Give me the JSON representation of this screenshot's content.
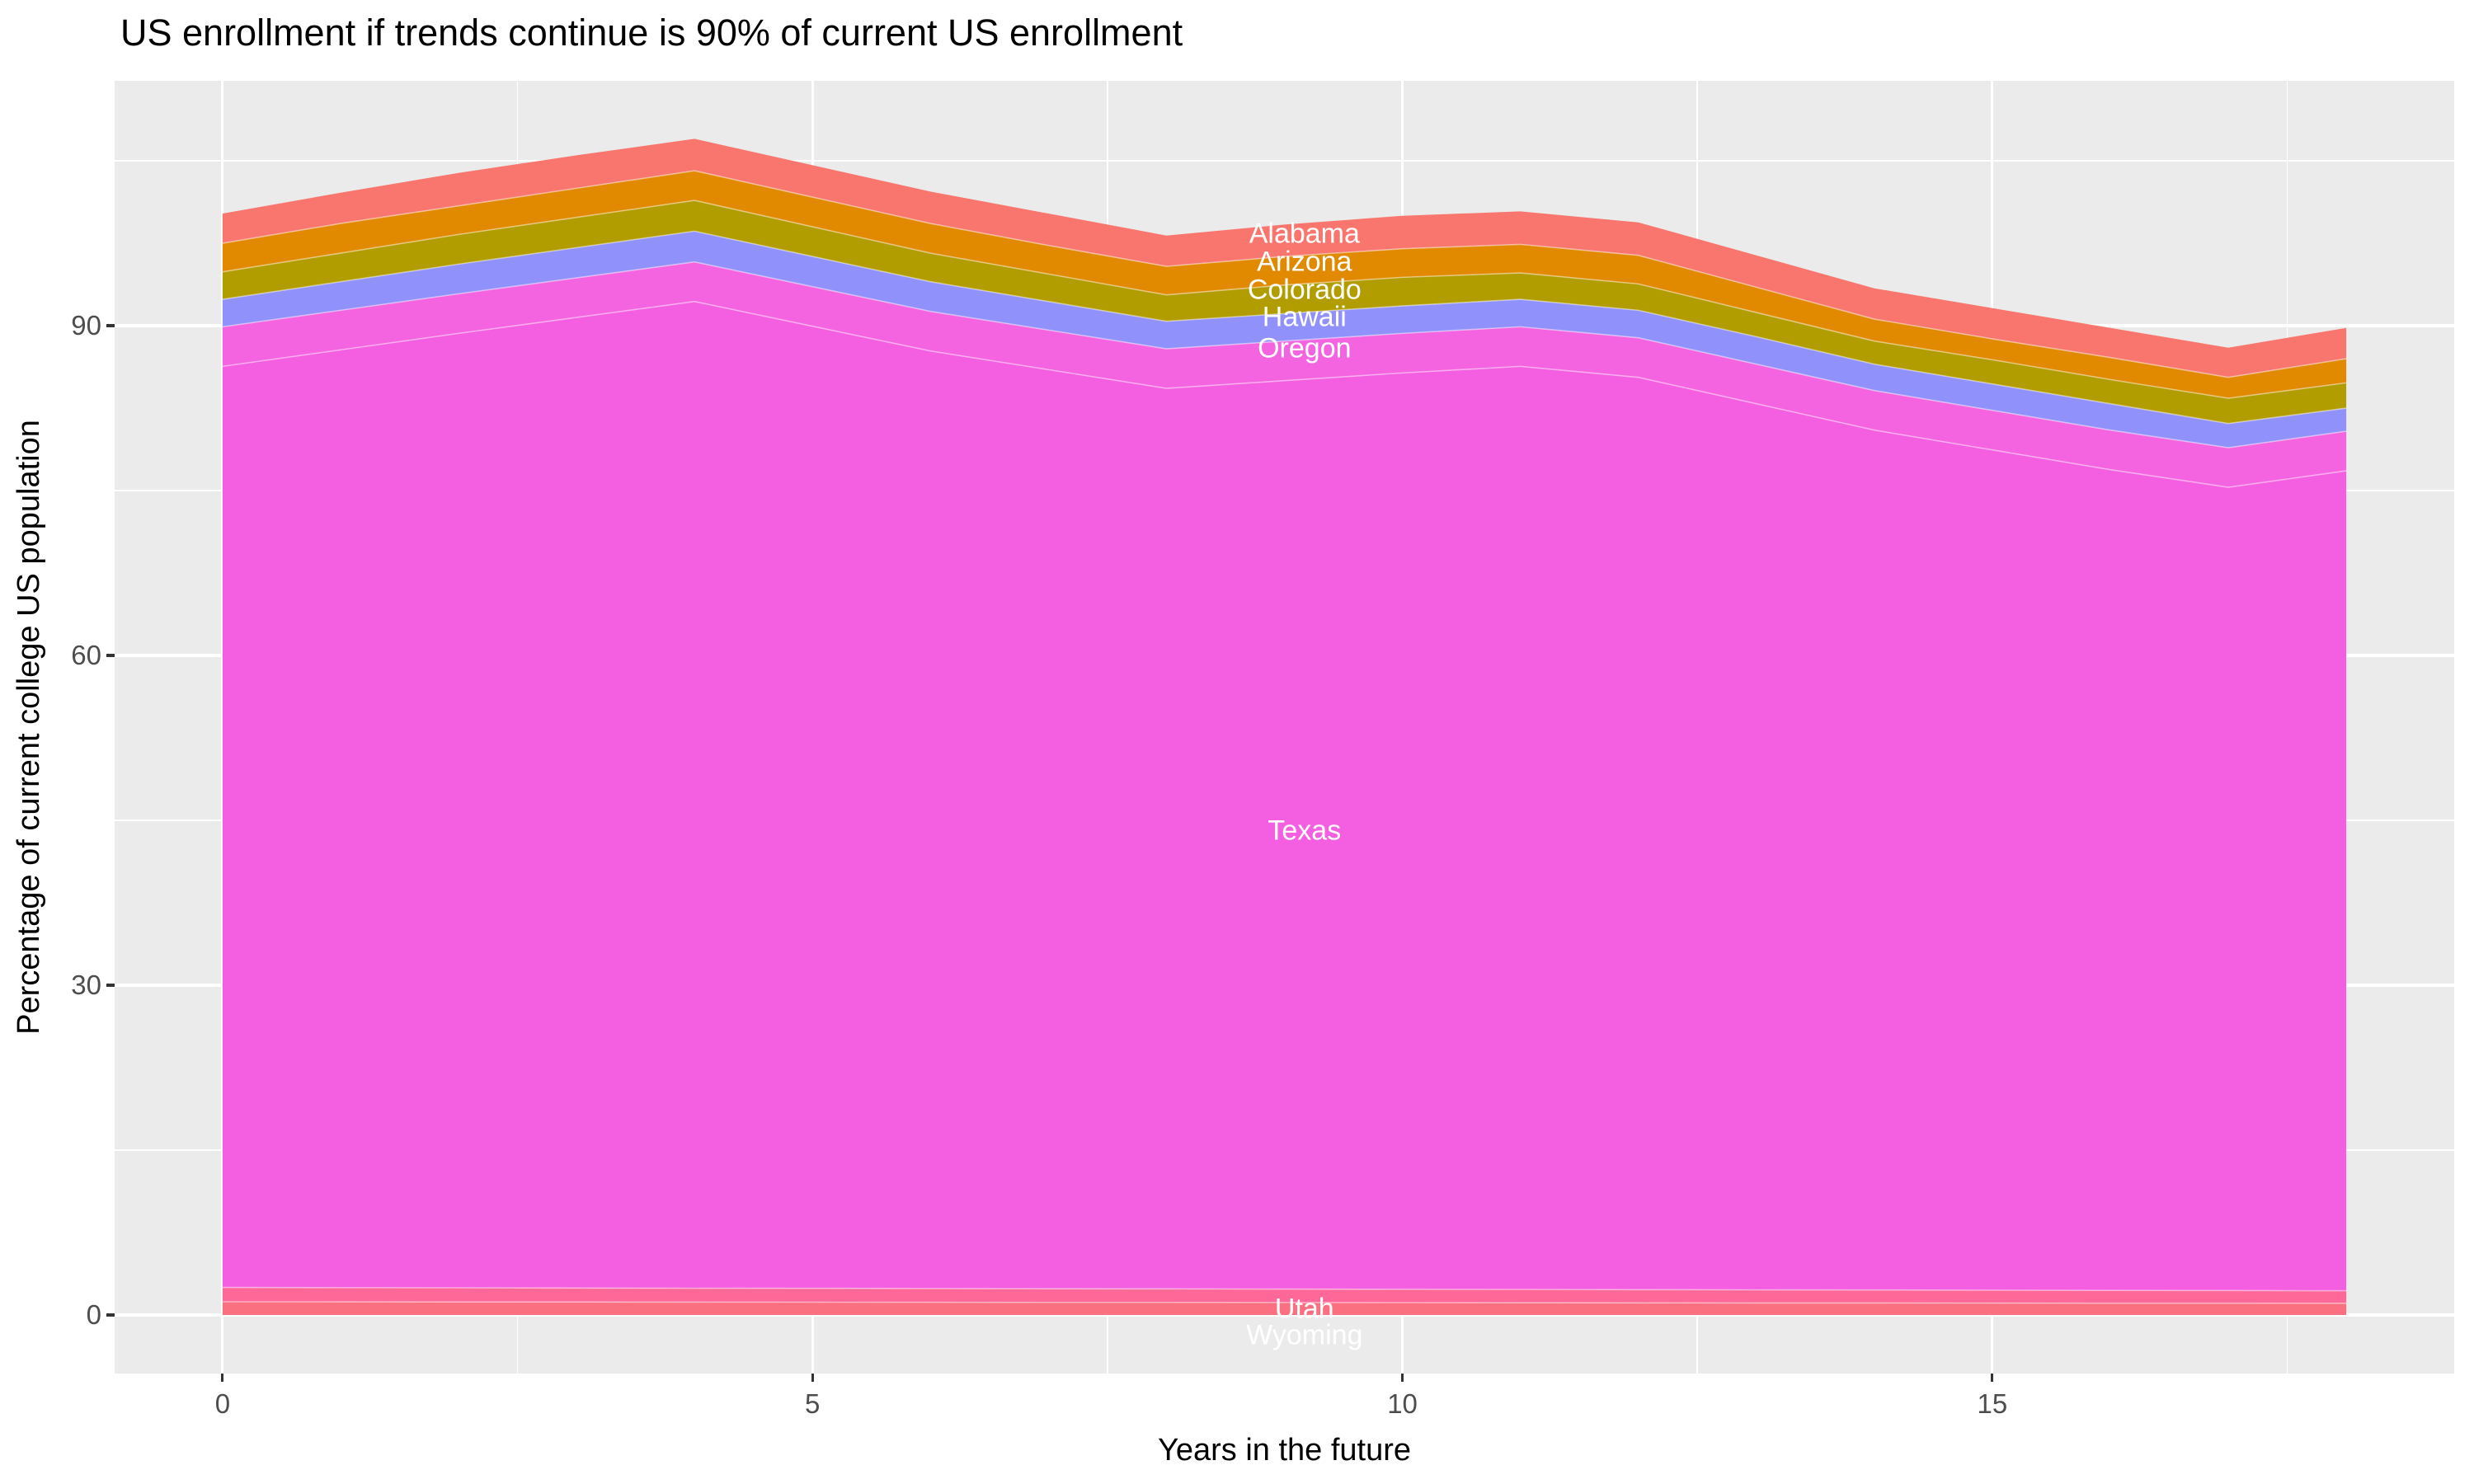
{
  "title": "US enrollment if trends continue is 90% of current US enrollment",
  "chart_data": {
    "type": "area",
    "stacked": true,
    "title": "US enrollment if trends continue is 90% of current US enrollment",
    "xlabel": "Years in the future",
    "ylabel": "Percentage of current college US population",
    "legend": "none (direct white labels on bands)",
    "panel_bg": "#EBEBEB",
    "grid_color": "#FFFFFF",
    "tick_color": "#333333",
    "tick_label_color": "#4D4D4D",
    "xlim": [
      -0.915,
      18.915
    ],
    "ylim": [
      -5.33,
      112.28
    ],
    "x_ticks": [
      0,
      5,
      10,
      15
    ],
    "x_minor_ticks": [
      2.5,
      7.5,
      12.5,
      17.5
    ],
    "y_ticks": [
      0,
      30,
      60,
      90
    ],
    "y_minor_ticks": [
      15,
      45,
      75,
      105
    ],
    "years": [
      0,
      1,
      2,
      3,
      4,
      5,
      6,
      7,
      8,
      9,
      10,
      11,
      12,
      13,
      14,
      15,
      16,
      17,
      18
    ],
    "series": [
      {
        "name": "Wyoming",
        "color": "#FB7080",
        "values": [
          1.2,
          1.19,
          1.18,
          1.18,
          1.17,
          1.16,
          1.15,
          1.14,
          1.14,
          1.13,
          1.12,
          1.11,
          1.1,
          1.09,
          1.09,
          1.08,
          1.07,
          1.07,
          1.06
        ]
      },
      {
        "name": "Utah",
        "color": "#FD6899",
        "values": [
          1.3,
          1.29,
          1.29,
          1.27,
          1.26,
          1.26,
          1.25,
          1.24,
          1.23,
          1.22,
          1.21,
          1.21,
          1.2,
          1.19,
          1.18,
          1.17,
          1.16,
          1.15,
          1.14
        ]
      },
      {
        "name": "Texas",
        "color": "#F45FE1",
        "values": [
          83.8,
          85.32,
          86.83,
          88.3,
          89.77,
          87.53,
          85.3,
          83.62,
          81.93,
          82.65,
          83.37,
          83.98,
          83.0,
          80.62,
          78.23,
          76.45,
          74.67,
          73.08,
          74.6
        ]
      },
      {
        "name": "Oregon",
        "color": "#F564E0",
        "values": [
          3.6,
          3.6,
          3.6,
          3.6,
          3.6,
          3.6,
          3.6,
          3.6,
          3.6,
          3.6,
          3.6,
          3.6,
          3.6,
          3.6,
          3.6,
          3.6,
          3.6,
          3.6,
          3.6
        ]
      },
      {
        "name": "Hawaii",
        "color": "#9191FB",
        "values": [
          2.5,
          2.6,
          2.7,
          2.75,
          2.8,
          2.75,
          2.7,
          2.6,
          2.5,
          2.5,
          2.5,
          2.5,
          2.5,
          2.5,
          2.4,
          2.4,
          2.4,
          2.2,
          2.1
        ]
      },
      {
        "name": "Colorado",
        "color": "#B29D00",
        "values": [
          2.5,
          2.6,
          2.7,
          2.75,
          2.8,
          2.7,
          2.6,
          2.5,
          2.4,
          2.6,
          2.6,
          2.4,
          2.4,
          2.2,
          2.1,
          2.2,
          2.2,
          2.3,
          2.3
        ]
      },
      {
        "name": "Arizona",
        "color": "#E18A00",
        "values": [
          2.6,
          2.7,
          2.6,
          2.65,
          2.7,
          2.7,
          2.7,
          2.6,
          2.6,
          2.6,
          2.6,
          2.6,
          2.6,
          2.3,
          2.0,
          1.9,
          2.0,
          1.9,
          2.2
        ]
      },
      {
        "name": "Alabama",
        "color": "#F8766D",
        "values": [
          2.7,
          2.8,
          3.0,
          3.0,
          2.9,
          2.9,
          2.9,
          2.9,
          2.8,
          2.9,
          3.0,
          3.0,
          3.0,
          2.9,
          2.8,
          2.8,
          2.7,
          2.7,
          2.8
        ]
      }
    ],
    "stack_order_bottom_to_top": [
      "Wyoming",
      "Utah",
      "Texas",
      "Oregon",
      "Hawaii",
      "Colorado",
      "Arizona",
      "Alabama"
    ],
    "annotations": [
      {
        "text": "Alabama",
        "x": 9.17,
        "y": 98.35,
        "color": "#FFFFFF"
      },
      {
        "text": "Arizona",
        "x": 9.17,
        "y": 95.8,
        "color": "#FFFFFF"
      },
      {
        "text": "Colorado",
        "x": 9.17,
        "y": 93.2,
        "color": "#FFFFFF"
      },
      {
        "text": "Hawaii",
        "x": 9.17,
        "y": 90.75,
        "color": "#FFFFFF"
      },
      {
        "text": "Oregon",
        "x": 9.17,
        "y": 87.9,
        "color": "#FFFFFF"
      },
      {
        "text": "Texas",
        "x": 9.17,
        "y": 44.0,
        "color": "#FFFFFF"
      },
      {
        "text": "Utah",
        "x": 9.17,
        "y": 0.53,
        "color": "#FFFFFF"
      },
      {
        "text": "Wyoming",
        "x": 9.17,
        "y": -1.88,
        "color": "#FFFFFF"
      }
    ]
  },
  "axes": {
    "x_tick_labels": [
      "0",
      "5",
      "10",
      "15"
    ],
    "y_tick_labels": [
      "0",
      "30",
      "60",
      "90"
    ],
    "x_title": "Years in the future",
    "y_title": "Percentage of current college US population"
  }
}
